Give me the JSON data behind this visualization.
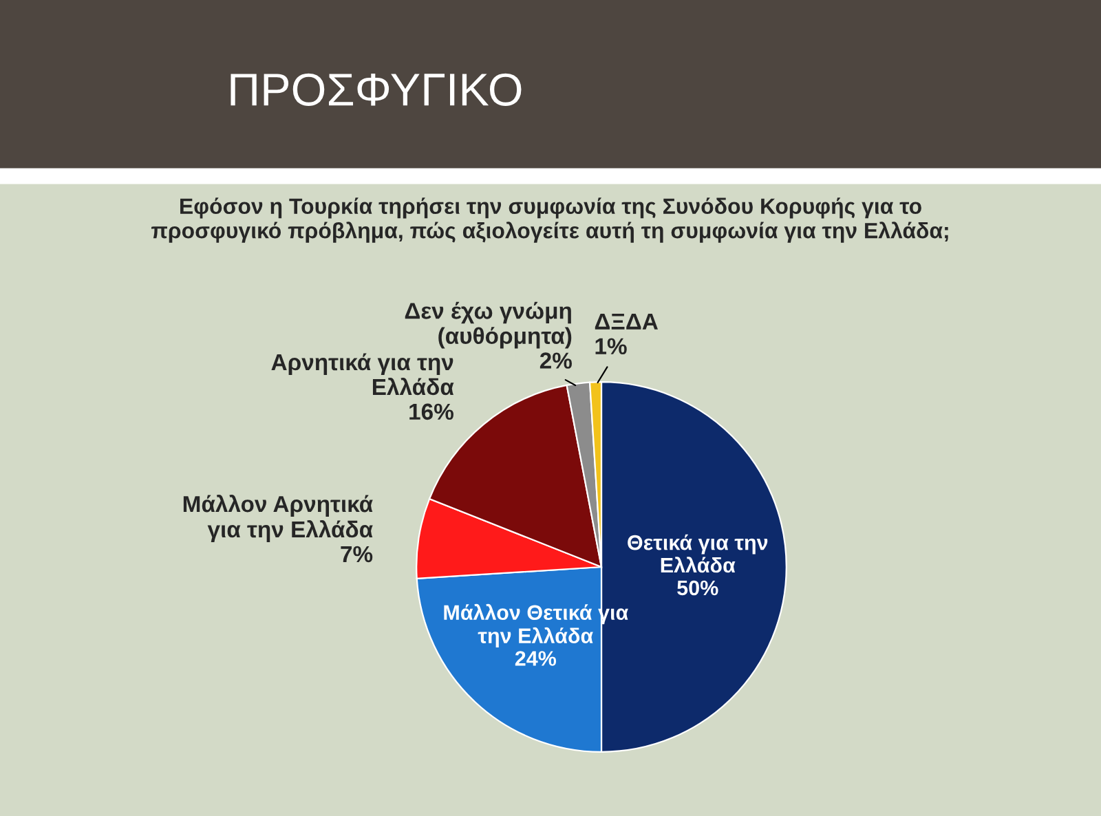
{
  "chart_data": {
    "type": "pie",
    "title": "ΠΡΟΣΦΥΓΙΚΟ",
    "subtitle": "Εφόσον η Τουρκία τηρήσει την συμφωνία της Συνόδου Κορυφής για το\nπροσφυγικό πρόβλημα, πώς αξιολογείτε αυτή τη συμφωνία για την Ελλάδα;",
    "categories": [
      "Θετικά για την\nΕλλάδα",
      "Μάλλον Θετικά για\nτην Ελλάδα",
      "Μάλλον Αρνητικά\nγια την Ελλάδα",
      "Αρνητικά για την\nΕλλάδα",
      "Δεν έχω γνώμη\n(αυθόρμητα)",
      "ΔΞΔΑ"
    ],
    "values": [
      50,
      24,
      7,
      16,
      2,
      1
    ],
    "value_labels": [
      "50%",
      "24%",
      "7%",
      "16%",
      "2%",
      "1%"
    ],
    "colors": [
      "#0d2a6b",
      "#1f78d1",
      "#ff1a1a",
      "#7b0a0a",
      "#8c8c8c",
      "#f2c21b"
    ],
    "legend": false
  }
}
